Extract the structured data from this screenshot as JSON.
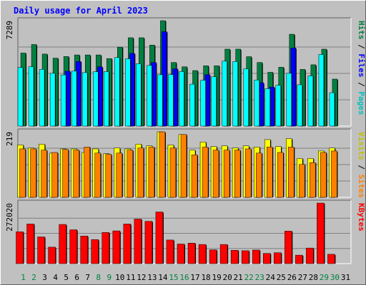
{
  "title": "Daily usage for April 2023",
  "chart_data": [
    {
      "type": "bar",
      "name": "hits-files-pages",
      "categories": [
        "1",
        "2",
        "3",
        "4",
        "5",
        "6",
        "7",
        "8",
        "9",
        "10",
        "11",
        "12",
        "13",
        "14",
        "15",
        "16",
        "17",
        "18",
        "19",
        "20",
        "21",
        "22",
        "23",
        "24",
        "25",
        "26",
        "27",
        "28",
        "29",
        "30",
        "31"
      ],
      "max_label": "7289",
      "ylim": [
        0,
        7289
      ],
      "series": [
        {
          "name": "Hits",
          "color": "#008040",
          "values": [
            5050,
            5640,
            4980,
            4700,
            4810,
            4920,
            4920,
            4920,
            4670,
            5460,
            6110,
            6110,
            5600,
            7289,
            4400,
            4100,
            3840,
            4170,
            4170,
            5320,
            5320,
            4800,
            4400,
            3720,
            4070,
            6350,
            3920,
            4240,
            5320,
            3250,
            0
          ]
        },
        {
          "name": "Files",
          "color": "#0000ff",
          "values": [
            0,
            0,
            0,
            0,
            3800,
            4470,
            0,
            4100,
            0,
            0,
            5030,
            0,
            4400,
            6530,
            3960,
            0,
            0,
            3560,
            0,
            0,
            0,
            0,
            3000,
            2700,
            0,
            5400,
            0,
            0,
            0,
            0,
            0
          ]
        },
        {
          "name": "Pages",
          "color": "#00ffff",
          "values": [
            4050,
            4100,
            3920,
            3650,
            3540,
            3800,
            3700,
            3760,
            3770,
            4740,
            4650,
            4310,
            4190,
            3550,
            3560,
            3770,
            2900,
            3170,
            3410,
            4490,
            4460,
            3960,
            3190,
            2590,
            2820,
            3650,
            2860,
            3470,
            4950,
            2310,
            0
          ]
        }
      ],
      "right_labels": [
        {
          "text": "Pages",
          "color": "#00c0c0"
        },
        {
          "text": " / ",
          "color": "#000000"
        },
        {
          "text": "Files",
          "color": "#0000ff"
        },
        {
          "text": " / ",
          "color": "#000000"
        },
        {
          "text": "Hits",
          "color": "#008040"
        }
      ]
    },
    {
      "type": "bar",
      "name": "visits-sites",
      "categories": [
        "1",
        "2",
        "3",
        "4",
        "5",
        "6",
        "7",
        "8",
        "9",
        "10",
        "11",
        "12",
        "13",
        "14",
        "15",
        "16",
        "17",
        "18",
        "19",
        "20",
        "21",
        "22",
        "23",
        "24",
        "25",
        "26",
        "27",
        "28",
        "29",
        "30",
        "31"
      ],
      "max_label": "219",
      "ylim": [
        0,
        219
      ],
      "series": [
        {
          "name": "Visits",
          "color": "#ffff00",
          "values": [
            175,
            165,
            178,
            148,
            162,
            162,
            150,
            162,
            146,
            165,
            162,
            178,
            172,
            219,
            175,
            210,
            158,
            185,
            170,
            172,
            165,
            172,
            168,
            193,
            170,
            196,
            130,
            130,
            155,
            165,
            0
          ]
        },
        {
          "name": "Sites",
          "color": "#ff8000",
          "values": [
            162,
            162,
            158,
            150,
            160,
            158,
            168,
            148,
            144,
            148,
            158,
            165,
            168,
            219,
            165,
            210,
            142,
            168,
            158,
            158,
            158,
            162,
            148,
            168,
            150,
            168,
            110,
            116,
            150,
            155,
            0
          ]
        }
      ],
      "right_labels": [
        {
          "text": "Sites",
          "color": "#ff8000"
        },
        {
          "text": " / ",
          "color": "#000000"
        },
        {
          "text": "Visits",
          "color": "#c0c000"
        }
      ]
    },
    {
      "type": "bar",
      "name": "kbytes",
      "categories": [
        "1",
        "2",
        "3",
        "4",
        "5",
        "6",
        "7",
        "8",
        "9",
        "10",
        "11",
        "12",
        "13",
        "14",
        "15",
        "16",
        "17",
        "18",
        "19",
        "20",
        "21",
        "22",
        "23",
        "24",
        "25",
        "26",
        "27",
        "28",
        "29",
        "30",
        "31"
      ],
      "max_label": "272020",
      "ylim": [
        0,
        272020
      ],
      "series": [
        {
          "name": "KBytes",
          "color": "#ff0000",
          "values": [
            143000,
            178000,
            120000,
            74000,
            176000,
            152000,
            124000,
            108000,
            140000,
            147000,
            178000,
            200000,
            190000,
            232000,
            106000,
            88000,
            92000,
            86000,
            62000,
            86000,
            60000,
            58000,
            61000,
            46000,
            49000,
            146000,
            38000,
            70000,
            272020,
            42000,
            0
          ]
        }
      ],
      "right_labels": [
        {
          "text": "KBytes",
          "color": "#ff0000"
        }
      ]
    }
  ],
  "day_label_colors": [
    "#008040",
    "#008040",
    "#000000",
    "#000000",
    "#000000",
    "#000000",
    "#000000",
    "#008040",
    "#008040",
    "#000000",
    "#000000",
    "#000000",
    "#000000",
    "#000000",
    "#008040",
    "#008040",
    "#000000",
    "#000000",
    "#000000",
    "#000000",
    "#000000",
    "#008040",
    "#008040",
    "#000000",
    "#000000",
    "#000000",
    "#000000",
    "#000000",
    "#008040",
    "#008040",
    "#000000"
  ]
}
